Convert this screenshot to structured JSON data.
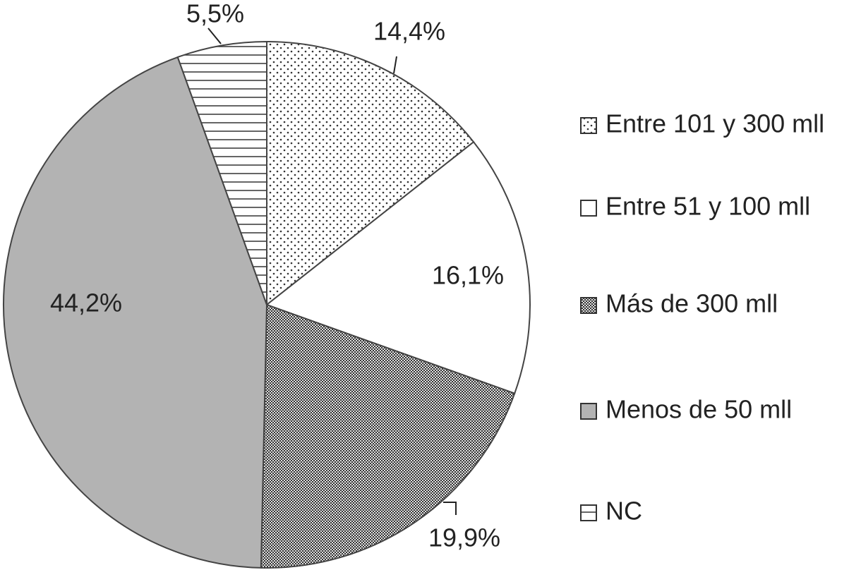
{
  "chart_data": {
    "type": "pie",
    "categories": [
      "Entre 101 y 300 mll",
      "Entre 51 y 100 mll",
      "Más de 300 mll",
      "Menos de 50 mll",
      "NC"
    ],
    "values": [
      14.4,
      16.1,
      19.9,
      44.2,
      5.5
    ],
    "value_labels": [
      "14,4%",
      "16,1%",
      "19,9%",
      "44,2%",
      "5,5%"
    ],
    "colors": [
      "#ffffff",
      "#ffffff",
      "#6a6a6a",
      "#b3b3b3",
      "#ffffff"
    ],
    "legend": "right"
  }
}
